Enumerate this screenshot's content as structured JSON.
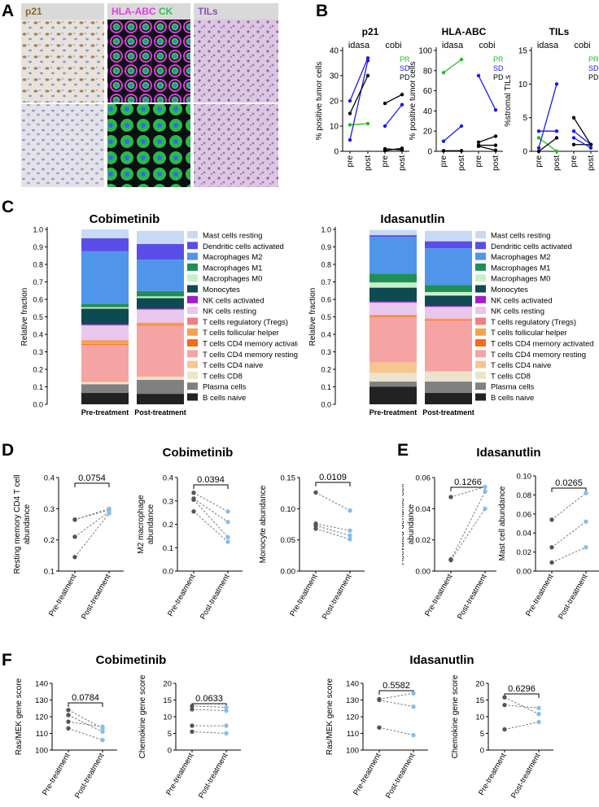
{
  "panels": {
    "A": "A",
    "B": "B",
    "C": "C",
    "D": "D",
    "E": "E",
    "F": "F"
  },
  "panel_a": {
    "labels": [
      {
        "text": "p21",
        "color": "#8a6a2a"
      },
      {
        "parts": [
          {
            "text": "HLA-ABC",
            "color": "#e23ce2"
          },
          {
            "text": "CK",
            "color": "#2ec44a"
          }
        ]
      },
      {
        "text": "TILs",
        "color": "#8a54b8"
      }
    ]
  },
  "colors": {
    "PR": "#22bb22",
    "SD": "#1a1ae6",
    "PD": "#000000",
    "pre": "#555555",
    "post": "#88bde6"
  },
  "chart_data": [
    {
      "id": "B1",
      "type": "line",
      "title": "p21",
      "ylabel": "% positive tumor cells",
      "ylim": [
        0,
        40
      ],
      "yticks": [
        0,
        10,
        20,
        30,
        40
      ],
      "groups": [
        "idasa",
        "cobi"
      ],
      "xticklabels": [
        "pre",
        "post",
        "pre",
        "post"
      ],
      "legend": [
        "PR",
        "SD",
        "PD"
      ],
      "series": [
        {
          "group": 0,
          "response": "PR",
          "pre": 10.5,
          "post": 11
        },
        {
          "group": 0,
          "response": "SD",
          "pre": 20,
          "post": 37
        },
        {
          "group": 0,
          "response": "SD",
          "pre": 4.5,
          "post": 36
        },
        {
          "group": 0,
          "response": "PD",
          "pre": 15,
          "post": 30
        },
        {
          "group": 1,
          "response": "SD",
          "pre": 10,
          "post": 18.5
        },
        {
          "group": 1,
          "response": "PD",
          "pre": 19,
          "post": 22.5
        },
        {
          "group": 1,
          "response": "PD",
          "pre": 1,
          "post": 0.5
        },
        {
          "group": 1,
          "response": "PD",
          "pre": 0.3,
          "post": 1.2
        }
      ]
    },
    {
      "id": "B2",
      "type": "line",
      "title": "HLA-ABC",
      "ylabel": "% positive tumor cells",
      "ylim": [
        0,
        100
      ],
      "yticks": [
        0,
        20,
        40,
        60,
        80,
        100
      ],
      "groups": [
        "idasa",
        "cobi"
      ],
      "xticklabels": [
        "pre",
        "post",
        "pre",
        "post"
      ],
      "legend": [
        "PR",
        "SD",
        "PD"
      ],
      "series": [
        {
          "group": 0,
          "response": "PR",
          "pre": 78,
          "post": 91
        },
        {
          "group": 0,
          "response": "SD",
          "pre": 10,
          "post": 25
        },
        {
          "group": 0,
          "response": "SD",
          "pre": 0.5,
          "post": 0.5
        },
        {
          "group": 0,
          "response": "PD",
          "pre": 0.5,
          "post": 0.5
        },
        {
          "group": 1,
          "response": "SD",
          "pre": 75,
          "post": 41
        },
        {
          "group": 1,
          "response": "PD",
          "pre": 9,
          "post": 15
        },
        {
          "group": 1,
          "response": "PD",
          "pre": 6,
          "post": 6
        },
        {
          "group": 1,
          "response": "PD",
          "pre": 5,
          "post": 1
        }
      ]
    },
    {
      "id": "B3",
      "type": "line",
      "title": "TILs",
      "ylabel": "%stromal TILs",
      "ylim": [
        0,
        15
      ],
      "yticks": [
        0,
        5,
        10,
        15
      ],
      "groups": [
        "idasa",
        "cobi"
      ],
      "xticklabels": [
        "pre",
        "post",
        "pre",
        "post"
      ],
      "legend": [
        "PR",
        "SD",
        "PD"
      ],
      "series": [
        {
          "group": 0,
          "response": "PR",
          "pre": 2,
          "post": 0
        },
        {
          "group": 0,
          "response": "SD",
          "pre": 3,
          "post": 3
        },
        {
          "group": 0,
          "response": "SD",
          "pre": 0.5,
          "post": 10
        },
        {
          "group": 0,
          "response": "PD",
          "pre": 0,
          "post": 2
        },
        {
          "group": 1,
          "response": "SD",
          "pre": 3,
          "post": 1
        },
        {
          "group": 1,
          "response": "PD",
          "pre": 5,
          "post": 1
        },
        {
          "group": 1,
          "response": "PD",
          "pre": 1,
          "post": 1
        },
        {
          "group": 1,
          "response": "SD",
          "pre": 2,
          "post": 0.5
        }
      ]
    },
    {
      "id": "C1",
      "type": "bar",
      "stacked": true,
      "title": "Cobimetinib",
      "ylabel": "Relative fraction",
      "ylim": [
        0,
        1
      ],
      "yticks": [
        "0.0",
        "0.1",
        "0.2",
        "0.3",
        "0.4",
        "0.5",
        "0.6",
        "0.7",
        "0.8",
        "0.9",
        "1.0"
      ],
      "categories": [
        "Pre-treatment",
        "Post-treatment"
      ],
      "series": [
        {
          "name": "B cells naive",
          "color": "#222222",
          "values": [
            0.065,
            0.06
          ]
        },
        {
          "name": "Plasma cells",
          "color": "#808080",
          "values": [
            0.05,
            0.08
          ]
        },
        {
          "name": "T cells CD8",
          "color": "#ece3cc",
          "values": [
            0.01,
            0.015
          ]
        },
        {
          "name": "T cells CD4 naive",
          "color": "#f7c68e",
          "values": [
            0.005,
            0.005
          ]
        },
        {
          "name": "T cells CD4 memory resting",
          "color": "#f5a3a3",
          "values": [
            0.21,
            0.29
          ]
        },
        {
          "name": "T cells CD4 memory activated",
          "color": "#f26b1e",
          "values": [
            0.005,
            0.005
          ]
        },
        {
          "name": "T cells follicular helper",
          "color": "#f7a24a",
          "values": [
            0.02,
            0.01
          ]
        },
        {
          "name": "T cells regulatory (Tregs)",
          "color": "#f08080",
          "values": [
            0.002,
            0.002
          ]
        },
        {
          "name": "NK cells resting",
          "color": "#e9c6ee",
          "values": [
            0.085,
            0.075
          ]
        },
        {
          "name": "NK cells activated",
          "color": "#a11ec8",
          "values": [
            0.005,
            0.005
          ]
        },
        {
          "name": "Monocytes",
          "color": "#0e4a52",
          "values": [
            0.09,
            0.06
          ]
        },
        {
          "name": "Macrophages M0",
          "color": "#c8f0c8",
          "values": [
            0.008,
            0.01
          ]
        },
        {
          "name": "Macrophages M1",
          "color": "#1f8f57",
          "values": [
            0.02,
            0.03
          ]
        },
        {
          "name": "Macrophages M2",
          "color": "#4f95ea",
          "values": [
            0.3,
            0.18
          ]
        },
        {
          "name": "Dendritic cells activated",
          "color": "#5a4ee8",
          "values": [
            0.075,
            0.09
          ]
        },
        {
          "name": "Mast cells resting",
          "color": "#c7daf4",
          "values": [
            0.05,
            0.075
          ]
        }
      ]
    },
    {
      "id": "C2",
      "type": "bar",
      "stacked": true,
      "title": "Idasanutlin",
      "ylabel": "Relative fraction",
      "ylim": [
        0,
        1
      ],
      "yticks": [
        "0.0",
        "0.1",
        "0.2",
        "0.3",
        "0.4",
        "0.5",
        "0.6",
        "0.7",
        "0.8",
        "0.9",
        "1.0"
      ],
      "categories": [
        "Pre-treatment",
        "Post-treatment"
      ],
      "series": [
        {
          "name": "B cells naive",
          "color": "#222222",
          "values": [
            0.1,
            0.065
          ]
        },
        {
          "name": "Plasma cells",
          "color": "#808080",
          "values": [
            0.03,
            0.065
          ]
        },
        {
          "name": "T cells CD8",
          "color": "#ece3cc",
          "values": [
            0.05,
            0.055
          ]
        },
        {
          "name": "T cells CD4 naive",
          "color": "#f7c68e",
          "values": [
            0.06,
            0.005
          ]
        },
        {
          "name": "T cells CD4 memory resting",
          "color": "#f5a3a3",
          "values": [
            0.26,
            0.29
          ]
        },
        {
          "name": "T cells CD4 memory activated",
          "color": "#f26b1e",
          "values": [
            0.005,
            0.005
          ]
        },
        {
          "name": "T cells follicular helper",
          "color": "#f7a24a",
          "values": [
            0.005,
            0.005
          ]
        },
        {
          "name": "T cells regulatory (Tregs)",
          "color": "#f08080",
          "values": [
            0.002,
            0.002
          ]
        },
        {
          "name": "NK cells resting",
          "color": "#e9c6ee",
          "values": [
            0.07,
            0.065
          ]
        },
        {
          "name": "NK cells activated",
          "color": "#a11ec8",
          "values": [
            0.005,
            0.005
          ]
        },
        {
          "name": "Monocytes",
          "color": "#0e4a52",
          "values": [
            0.08,
            0.06
          ]
        },
        {
          "name": "Macrophages M0",
          "color": "#c8f0c8",
          "values": [
            0.03,
            0.02
          ]
        },
        {
          "name": "Macrophages M1",
          "color": "#1f8f57",
          "values": [
            0.05,
            0.04
          ]
        },
        {
          "name": "Macrophages M2",
          "color": "#4f95ea",
          "values": [
            0.21,
            0.21
          ]
        },
        {
          "name": "Dendritic cells activated",
          "color": "#5a4ee8",
          "values": [
            0.01,
            0.04
          ]
        },
        {
          "name": "Mast cells resting",
          "color": "#c7daf4",
          "values": [
            0.03,
            0.06
          ]
        }
      ]
    },
    {
      "id": "D1",
      "type": "scatter",
      "group": "Cobimetinib",
      "ylabel": [
        "Resting memory CD4 T cell",
        "abundance"
      ],
      "ylim": [
        0.1,
        0.4
      ],
      "yticks": [
        "0.1",
        "0.2",
        "0.3",
        "0.4"
      ],
      "pvalue": "0.0754",
      "categories": [
        "Pre-treatment",
        "Post-treatment"
      ],
      "pairs": [
        [
          0.265,
          0.3
        ],
        [
          0.265,
          0.296
        ],
        [
          0.21,
          0.29
        ],
        [
          0.145,
          0.285
        ]
      ]
    },
    {
      "id": "D2",
      "type": "scatter",
      "group": "Cobimetinib",
      "ylabel": [
        "M2 macrophage",
        "abundance"
      ],
      "ylim": [
        0.0,
        0.4
      ],
      "yticks": [
        "0.0",
        "0.1",
        "0.2",
        "0.3",
        "0.4"
      ],
      "pvalue": "0.0394",
      "categories": [
        "Pre-treatment",
        "Post-treatment"
      ],
      "pairs": [
        [
          0.335,
          0.255
        ],
        [
          0.31,
          0.21
        ],
        [
          0.305,
          0.145
        ],
        [
          0.255,
          0.125
        ]
      ]
    },
    {
      "id": "D3",
      "type": "scatter",
      "group": "Cobimetinib",
      "ylabel": [
        "Monocyte abundance"
      ],
      "ylim": [
        0.0,
        0.15
      ],
      "yticks": [
        "0.00",
        "0.05",
        "0.10",
        "0.15"
      ],
      "pvalue": "0.0109",
      "categories": [
        "Pre-treatment",
        "Post-treatment"
      ],
      "pairs": [
        [
          0.126,
          0.097
        ],
        [
          0.076,
          0.065
        ],
        [
          0.073,
          0.057
        ],
        [
          0.068,
          0.051
        ]
      ]
    },
    {
      "id": "E1",
      "type": "scatter",
      "group": "Idasanutlin",
      "ylabel": [
        "Activated dendritic cell",
        "abundance"
      ],
      "ylim": [
        0.0,
        0.06
      ],
      "yticks": [
        "0.00",
        "0.02",
        "0.04",
        "0.06"
      ],
      "pvalue": "0.1266",
      "categories": [
        "Pre-treatment",
        "Post-treatment"
      ],
      "pairs": [
        [
          0.0475,
          0.054
        ],
        [
          0.0075,
          0.051
        ],
        [
          0.007,
          0.04
        ]
      ]
    },
    {
      "id": "E2",
      "type": "scatter",
      "group": "Idasanutlin",
      "ylabel": [
        "Mast cell abundance"
      ],
      "ylim": [
        0.0,
        0.1
      ],
      "yticks": [
        "0.00",
        "0.02",
        "0.04",
        "0.06",
        "0.08",
        "0.10"
      ],
      "pvalue": "0.0265",
      "categories": [
        "Pre-treatment",
        "Post-treatment"
      ],
      "pairs": [
        [
          0.054,
          0.082
        ],
        [
          0.025,
          0.052
        ],
        [
          0.009,
          0.025
        ]
      ]
    },
    {
      "id": "F1",
      "type": "scatter",
      "group": "Cobimetinib",
      "ylabel": [
        "Ras/MEK gene score"
      ],
      "ylim": [
        100,
        140
      ],
      "yticks": [
        "100",
        "110",
        "120",
        "130",
        "140"
      ],
      "pvalue": "0.0784",
      "categories": [
        "Pre-treatment",
        "Post-treatment"
      ],
      "pairs": [
        [
          124,
          113
        ],
        [
          121,
          111
        ],
        [
          117,
          114
        ],
        [
          113,
          106
        ]
      ]
    },
    {
      "id": "F2",
      "type": "scatter",
      "group": "Cobimetinib",
      "ylabel": [
        "Chemokine gene score"
      ],
      "ylim": [
        0,
        20
      ],
      "yticks": [
        "0",
        "5",
        "10",
        "15",
        "20"
      ],
      "pvalue": "0.0633",
      "categories": [
        "Pre-treatment",
        "Post-treatment"
      ],
      "pairs": [
        [
          13.2,
          12.8
        ],
        [
          12.2,
          11.8
        ],
        [
          7.3,
          7.3
        ],
        [
          5.5,
          5.0
        ]
      ]
    },
    {
      "id": "F3",
      "type": "scatter",
      "group": "Idasanutlin",
      "ylabel": [
        "Ras/MEK gene score"
      ],
      "ylim": [
        100,
        140
      ],
      "yticks": [
        "100",
        "110",
        "120",
        "130",
        "140"
      ],
      "pvalue": "0.5582",
      "categories": [
        "Pre-treatment",
        "Post-treatment"
      ],
      "pairs": [
        [
          130.5,
          134
        ],
        [
          130,
          126
        ],
        [
          113.5,
          109
        ]
      ]
    },
    {
      "id": "F4",
      "type": "scatter",
      "group": "Idasanutlin",
      "ylabel": [
        "Chemokine gene score"
      ],
      "ylim": [
        0,
        20
      ],
      "yticks": [
        "0",
        "5",
        "10",
        "15",
        "20"
      ],
      "pvalue": "0.6296",
      "categories": [
        "Pre-treatment",
        "Post-treatment"
      ],
      "pairs": [
        [
          15.8,
          10.8
        ],
        [
          13.5,
          12.6
        ],
        [
          6.2,
          8.4
        ]
      ]
    }
  ],
  "titles": {
    "D": "Cobimetinib",
    "E": "Idasanutlin",
    "F_left": "Cobimetinib",
    "F_right": "Idasanutlin"
  }
}
